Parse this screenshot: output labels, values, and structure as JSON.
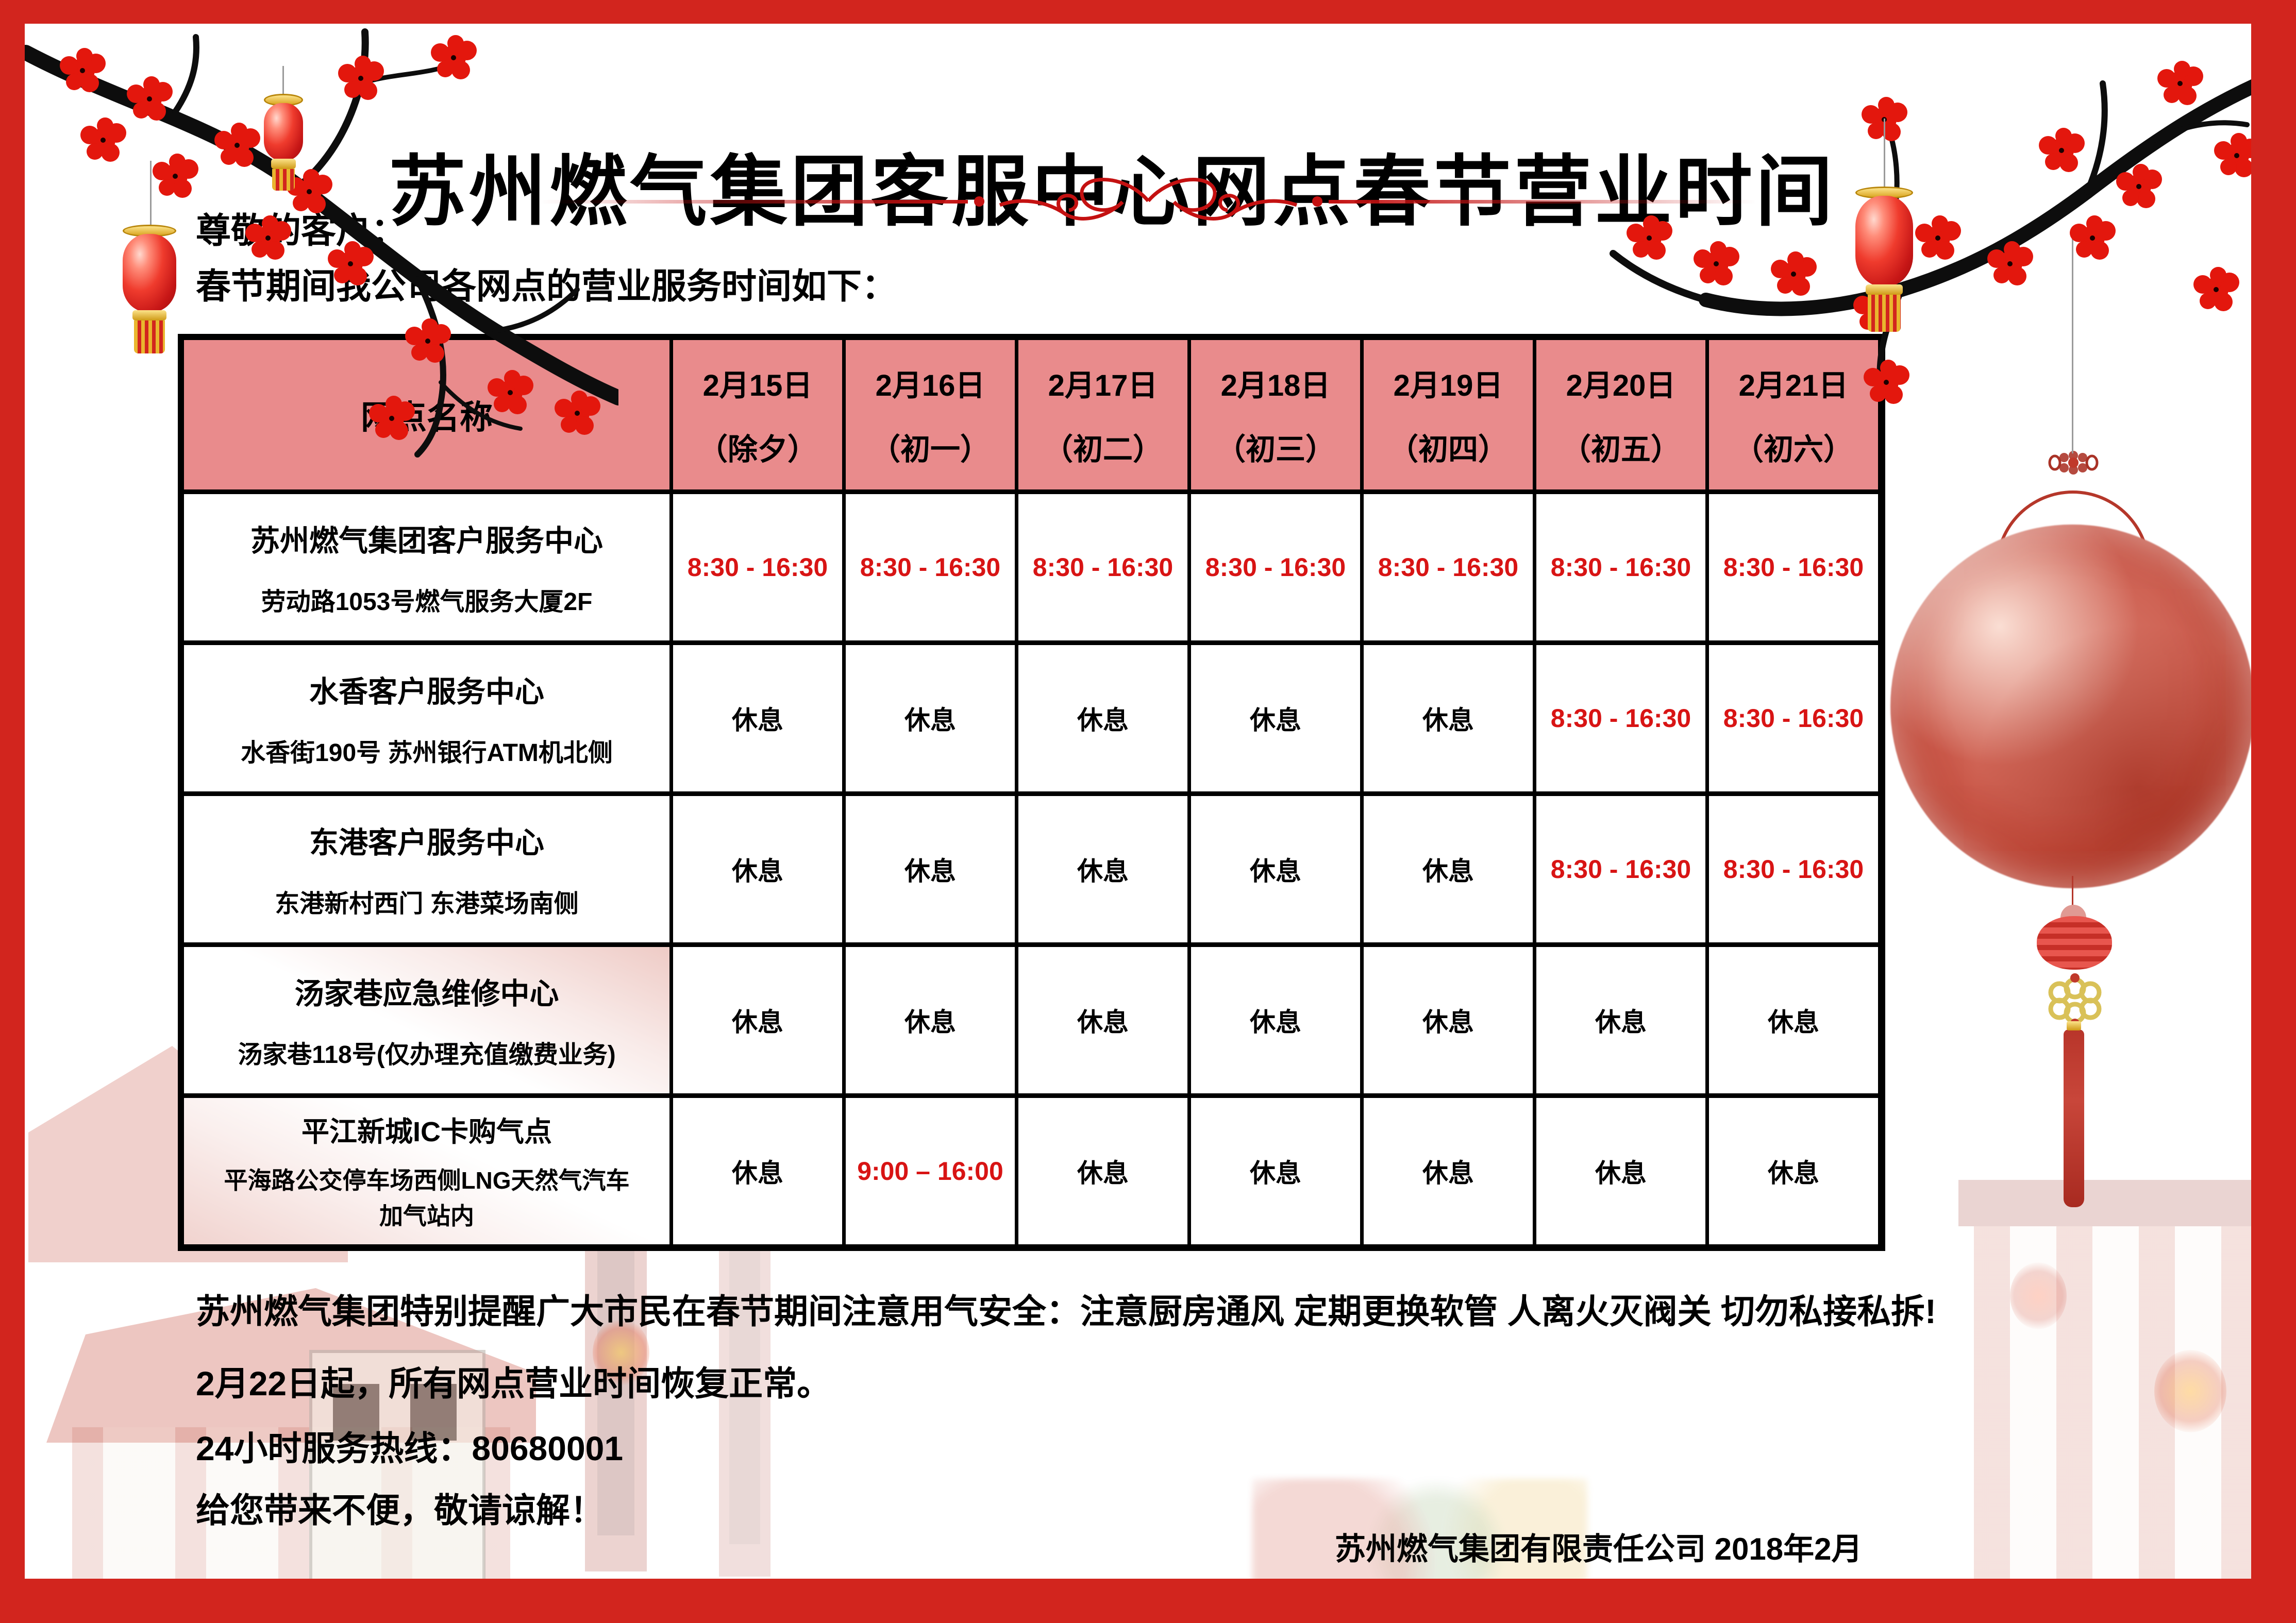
{
  "poster": {
    "title": "苏州燃气集团客服中心网点春节营业时间",
    "greeting": [
      "尊敬的客户：",
      "春节期间我公司各网点的营业服务时间如下："
    ],
    "notice_lines": [
      "苏州燃气集团特别提醒广大市民在春节期间注意用气安全：注意厨房通风 定期更换软管 人离火灭阀关 切勿私接私拆!",
      "2月22日起，所有网点营业时间恢复正常。",
      "24小时服务热线：80680001",
      "给您带来不便，敬请谅解！"
    ],
    "hotline": "80680001",
    "signature": "苏州燃气集团有限责任公司 2018年2月"
  },
  "table": {
    "name_header": "网点名称",
    "day_columns": [
      {
        "date": "2月15日",
        "holiday": "（除夕）"
      },
      {
        "date": "2月16日",
        "holiday": "（初一）"
      },
      {
        "date": "2月17日",
        "holiday": "（初二）"
      },
      {
        "date": "2月18日",
        "holiday": "（初三）"
      },
      {
        "date": "2月19日",
        "holiday": "（初四）"
      },
      {
        "date": "2月20日",
        "holiday": "（初五）"
      },
      {
        "date": "2月21日",
        "holiday": "（初六）"
      }
    ],
    "rows": [
      {
        "name": "苏州燃气集团客户服务中心",
        "address": "劳动路1053号燃气服务大厦2F",
        "schedule": [
          {
            "text": "8:30 - 16:30",
            "status": "open"
          },
          {
            "text": "8:30 - 16:30",
            "status": "open"
          },
          {
            "text": "8:30 - 16:30",
            "status": "open"
          },
          {
            "text": "8:30 - 16:30",
            "status": "open"
          },
          {
            "text": "8:30 - 16:30",
            "status": "open"
          },
          {
            "text": "8:30 - 16:30",
            "status": "open"
          },
          {
            "text": "8:30 - 16:30",
            "status": "open"
          }
        ]
      },
      {
        "name": "水香客户服务中心",
        "address": "水香街190号 苏州银行ATM机北侧",
        "schedule": [
          {
            "text": "休息",
            "status": "closed"
          },
          {
            "text": "休息",
            "status": "closed"
          },
          {
            "text": "休息",
            "status": "closed"
          },
          {
            "text": "休息",
            "status": "closed"
          },
          {
            "text": "休息",
            "status": "closed"
          },
          {
            "text": "8:30 - 16:30",
            "status": "open"
          },
          {
            "text": "8:30 - 16:30",
            "status": "open"
          }
        ]
      },
      {
        "name": "东港客户服务中心",
        "address": "东港新村西门 东港菜场南侧",
        "schedule": [
          {
            "text": "休息",
            "status": "closed"
          },
          {
            "text": "休息",
            "status": "closed"
          },
          {
            "text": "休息",
            "status": "closed"
          },
          {
            "text": "休息",
            "status": "closed"
          },
          {
            "text": "休息",
            "status": "closed"
          },
          {
            "text": "8:30 - 16:30",
            "status": "open"
          },
          {
            "text": "8:30 - 16:30",
            "status": "open"
          }
        ]
      },
      {
        "name": "汤家巷应急维修中心",
        "address": "汤家巷118号(仅办理充值缴费业务)",
        "schedule": [
          {
            "text": "休息",
            "status": "closed"
          },
          {
            "text": "休息",
            "status": "closed"
          },
          {
            "text": "休息",
            "status": "closed"
          },
          {
            "text": "休息",
            "status": "closed"
          },
          {
            "text": "休息",
            "status": "closed"
          },
          {
            "text": "休息",
            "status": "closed"
          },
          {
            "text": "休息",
            "status": "closed"
          }
        ]
      },
      {
        "name": "平江新城IC卡购气点",
        "address": "平海路公交停车场西侧LNG天然气汽车",
        "address2": "加气站内",
        "schedule": [
          {
            "text": "休息",
            "status": "closed"
          },
          {
            "text": "9:00 – 16:00",
            "status": "open"
          },
          {
            "text": "休息",
            "status": "closed"
          },
          {
            "text": "休息",
            "status": "closed"
          },
          {
            "text": "休息",
            "status": "closed"
          },
          {
            "text": "休息",
            "status": "closed"
          },
          {
            "text": "休息",
            "status": "closed"
          }
        ]
      }
    ]
  },
  "colors": {
    "frame_red": "#d2251e",
    "header_pink": "#e98b8c",
    "open_time_red": "#d81414",
    "text_black": "#000000"
  },
  "decor": {
    "icons": [
      "plum-branch-left-icon",
      "plum-branch-right-icon",
      "red-lantern-icon",
      "paper-lantern-icon",
      "chinese-knot-icon",
      "moon-lantern-icon",
      "tassel-icon",
      "flourish-divider-icon",
      "street-scene-background"
    ]
  }
}
